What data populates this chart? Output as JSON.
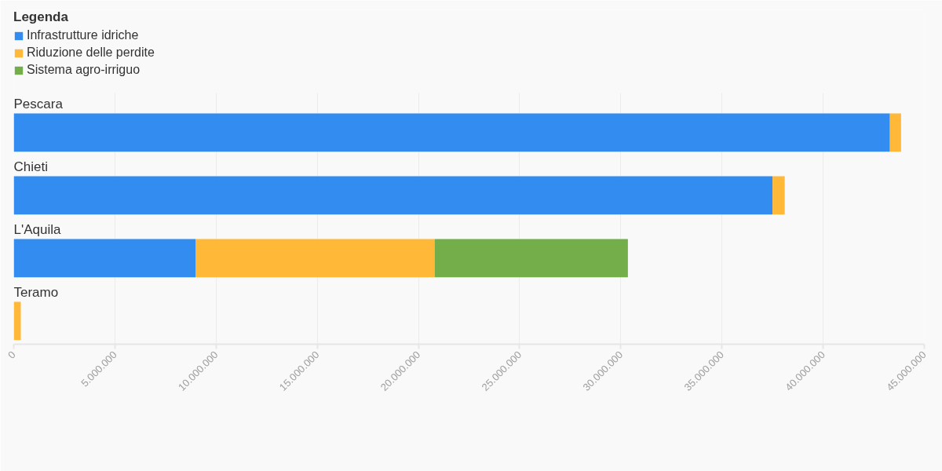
{
  "chart_data": {
    "type": "bar",
    "orientation": "horizontal",
    "stacked": true,
    "legend_title": "Legenda",
    "legend": "top left",
    "categories": [
      "Pescara",
      "Chieti",
      "L'Aquila",
      "Teramo"
    ],
    "series": [
      {
        "name": "Infrastrutture idriche",
        "color": "#338cf0",
        "values": [
          43300000,
          37500000,
          9000000,
          null
        ]
      },
      {
        "name": "Riduzione delle perdite",
        "color": "#ffb838",
        "values": [
          550000,
          600000,
          11800000,
          350000
        ]
      },
      {
        "name": "Sistema agro-irriguo",
        "color": "#73ae4a",
        "values": [
          null,
          null,
          9550000,
          null
        ]
      }
    ],
    "xlim": [
      0,
      45000000
    ],
    "xticks": [
      0,
      {
        "value": 5000000,
        "label": "5.000.000"
      },
      {
        "value": 10000000,
        "label": "10.000.000"
      },
      {
        "value": 15000000,
        "label": "15.000.000"
      },
      {
        "value": 20000000,
        "label": "20.000.000"
      },
      {
        "value": 25000000,
        "label": "25.000.000"
      },
      {
        "value": 30000000,
        "label": "30.000.000"
      },
      {
        "value": 35000000,
        "label": "35.000.000"
      },
      {
        "value": 40000000,
        "label": "40.000.000"
      },
      {
        "value": 45000000,
        "label": "45.000.000"
      }
    ],
    "grid": "x"
  }
}
